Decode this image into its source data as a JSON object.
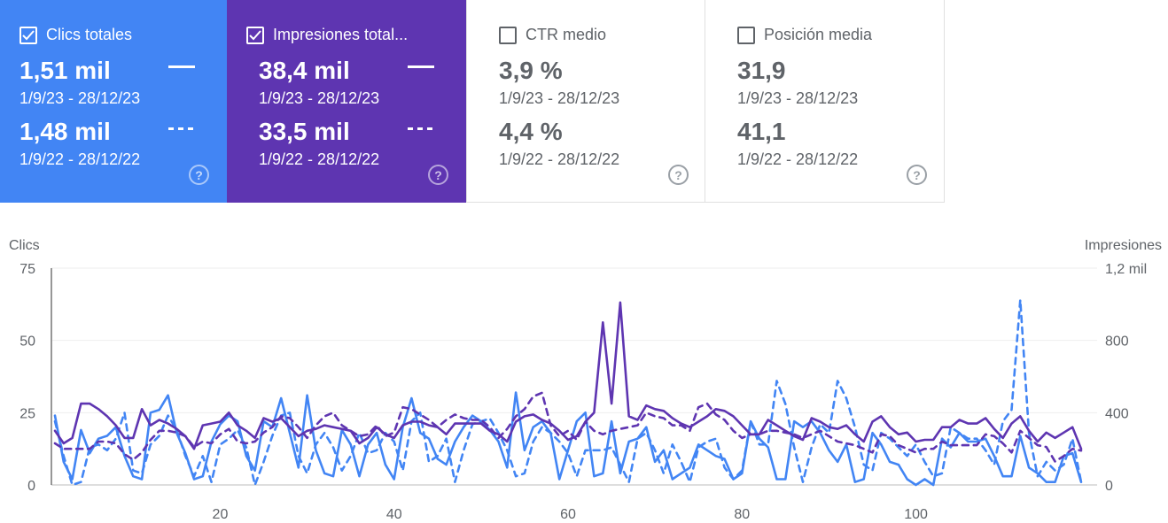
{
  "cards": [
    {
      "title": "Clics totales",
      "checked": true,
      "current_value": "1,51 mil",
      "current_period": "1/9/23 - 28/12/23",
      "previous_value": "1,48 mil",
      "previous_period": "1/9/22 - 28/12/22",
      "color": "#4285f4"
    },
    {
      "title": "Impresiones total...",
      "checked": true,
      "current_value": "38,4 mil",
      "current_period": "1/9/23 - 28/12/23",
      "previous_value": "33,5 mil",
      "previous_period": "1/9/22 - 28/12/22",
      "color": "#5e35b1"
    },
    {
      "title": "CTR medio",
      "checked": false,
      "current_value": "3,9 %",
      "current_period": "1/9/23 - 28/12/23",
      "previous_value": "4,4 %",
      "previous_period": "1/9/22 - 28/12/22",
      "color": "#ffffff"
    },
    {
      "title": "Posición media",
      "checked": false,
      "current_value": "31,9",
      "current_period": "1/9/23 - 28/12/23",
      "previous_value": "41,1",
      "previous_period": "1/9/22 - 28/12/22",
      "color": "#ffffff"
    }
  ],
  "chart_data": {
    "type": "line",
    "left_axis_title": "Clics",
    "right_axis_title": "Impresiones",
    "left_ticks": [
      "75",
      "50",
      "25",
      "0"
    ],
    "right_ticks": [
      "1,2 mil",
      "800",
      "400",
      "0"
    ],
    "x_ticks": [
      20,
      40,
      60,
      80,
      100
    ],
    "x_range": [
      1,
      119
    ],
    "left_ylim": [
      0,
      75
    ],
    "right_ylim": [
      0,
      1200
    ],
    "grid": true,
    "series": [
      {
        "axis": "left",
        "style": "solid",
        "color": "#4285f4",
        "values": [
          24,
          8,
          2,
          19,
          11,
          16,
          17,
          20,
          10,
          3,
          2,
          25,
          26,
          31,
          18,
          11,
          2,
          3,
          15,
          21,
          24,
          22,
          10,
          5,
          22,
          20,
          30,
          18,
          6,
          31,
          12,
          4,
          3,
          19,
          14,
          3,
          14,
          18,
          7,
          2,
          20,
          30,
          18,
          16,
          9,
          7,
          15,
          20,
          24,
          22,
          19,
          15,
          6,
          32,
          12,
          20,
          22,
          18,
          2,
          12,
          22,
          25,
          3,
          4,
          22,
          4,
          15,
          16,
          20,
          8,
          12,
          2,
          4,
          6,
          14,
          12,
          10,
          9,
          2,
          4,
          22,
          16,
          13,
          2,
          2,
          22,
          20,
          22,
          18,
          12,
          8,
          14,
          1,
          2,
          18,
          14,
          8,
          7,
          2,
          0,
          2,
          0,
          16,
          13,
          18,
          15,
          15,
          16,
          10,
          3,
          3,
          17,
          6,
          4,
          1,
          1,
          10,
          11,
          1
        ]
      },
      {
        "axis": "left",
        "style": "dashed",
        "color": "#4285f4",
        "values": [
          22,
          10,
          0,
          1,
          13,
          14,
          12,
          16,
          25,
          5,
          4,
          14,
          17,
          24,
          19,
          10,
          3,
          10,
          1,
          14,
          16,
          19,
          13,
          0,
          8,
          17,
          24,
          25,
          10,
          4,
          14,
          18,
          13,
          5,
          10,
          18,
          11,
          12,
          18,
          15,
          5,
          22,
          25,
          8,
          10,
          16,
          1,
          12,
          21,
          22,
          23,
          18,
          12,
          3,
          4,
          15,
          20,
          18,
          15,
          11,
          3,
          12,
          12,
          12,
          13,
          7,
          1,
          16,
          18,
          12,
          4,
          14,
          8,
          1,
          13,
          15,
          16,
          6,
          2,
          5,
          22,
          14,
          14,
          36,
          28,
          13,
          1,
          13,
          21,
          18,
          36,
          30,
          20,
          7,
          5,
          18,
          16,
          13,
          10,
          14,
          8,
          3,
          4,
          20,
          18,
          16,
          16,
          12,
          7,
          22,
          26,
          64,
          18,
          3,
          8,
          5,
          7,
          16,
          1
        ]
      },
      {
        "axis": "right",
        "style": "solid",
        "color": "#5e35b1",
        "values": [
          300,
          230,
          260,
          450,
          450,
          420,
          380,
          330,
          260,
          260,
          420,
          330,
          360,
          340,
          310,
          270,
          200,
          330,
          340,
          350,
          400,
          330,
          300,
          260,
          370,
          350,
          370,
          320,
          270,
          300,
          310,
          330,
          320,
          310,
          300,
          230,
          260,
          320,
          280,
          260,
          330,
          350,
          350,
          330,
          320,
          280,
          340,
          340,
          340,
          340,
          300,
          280,
          240,
          350,
          380,
          390,
          360,
          340,
          300,
          250,
          270,
          350,
          400,
          900,
          450,
          1010,
          380,
          360,
          440,
          420,
          410,
          370,
          340,
          320,
          350,
          380,
          420,
          410,
          380,
          330,
          280,
          280,
          360,
          330,
          300,
          270,
          250,
          370,
          350,
          320,
          310,
          330,
          280,
          240,
          350,
          380,
          320,
          280,
          290,
          240,
          250,
          250,
          320,
          320,
          360,
          340,
          340,
          370,
          310,
          260,
          340,
          380,
          300,
          240,
          290,
          260,
          290,
          320,
          200
        ]
      },
      {
        "axis": "right",
        "style": "dashed",
        "color": "#5e35b1",
        "values": [
          230,
          200,
          200,
          200,
          200,
          240,
          240,
          230,
          170,
          140,
          180,
          250,
          300,
          300,
          290,
          270,
          210,
          240,
          230,
          280,
          310,
          240,
          230,
          240,
          290,
          320,
          380,
          370,
          320,
          260,
          330,
          380,
          400,
          330,
          300,
          270,
          280,
          330,
          270,
          290,
          430,
          420,
          390,
          360,
          320,
          360,
          390,
          370,
          360,
          360,
          320,
          260,
          310,
          380,
          420,
          490,
          510,
          330,
          270,
          300,
          250,
          350,
          300,
          280,
          300,
          310,
          320,
          330,
          400,
          380,
          370,
          330,
          330,
          300,
          430,
          450,
          390,
          360,
          300,
          260,
          280,
          280,
          300,
          300,
          290,
          280,
          260,
          280,
          300,
          270,
          240,
          230,
          220,
          200,
          180,
          280,
          270,
          220,
          200,
          180,
          200,
          200,
          240,
          220,
          220,
          220,
          220,
          280,
          270,
          230,
          180,
          300,
          260,
          220,
          210,
          130,
          160,
          200,
          190
        ]
      }
    ]
  }
}
